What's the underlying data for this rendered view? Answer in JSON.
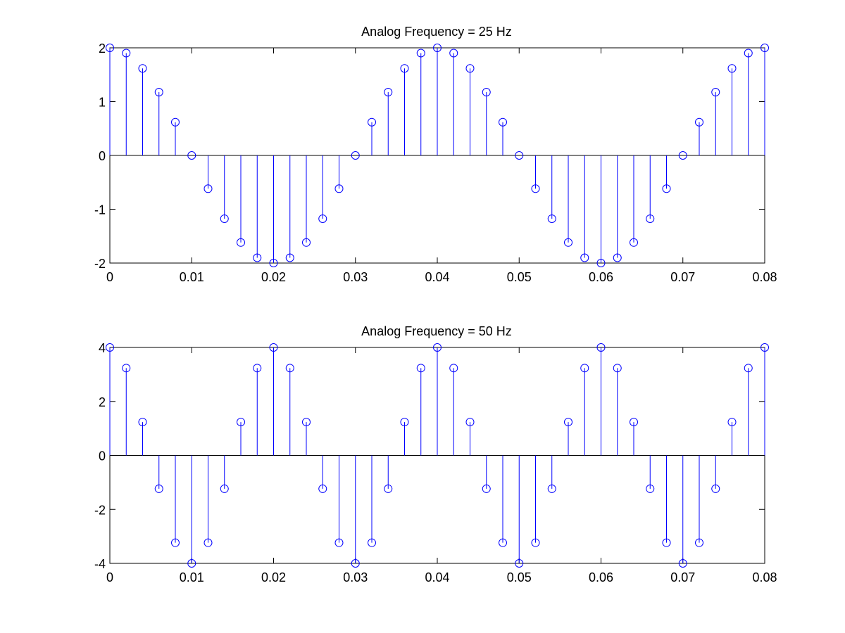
{
  "chart_data": [
    {
      "type": "stem",
      "title": "Analog Frequency = 25 Hz",
      "xlabel": "",
      "ylabel": "",
      "xlim": [
        0,
        0.08
      ],
      "ylim": [
        -2,
        2
      ],
      "xticks": [
        0,
        0.01,
        0.02,
        0.03,
        0.04,
        0.05,
        0.06,
        0.07,
        0.08
      ],
      "xtick_labels": [
        "0",
        "0.01",
        "0.02",
        "0.03",
        "0.04",
        "0.05",
        "0.06",
        "0.07",
        "0.08"
      ],
      "yticks": [
        -2,
        -1,
        0,
        1,
        2
      ],
      "ytick_labels": [
        "-2",
        "-1",
        "0",
        "1",
        "2"
      ],
      "grid": false,
      "series": [
        {
          "color": "#0000ff",
          "marker": "circle",
          "x": [
            0,
            0.002,
            0.004,
            0.006,
            0.008,
            0.01,
            0.012,
            0.014,
            0.016,
            0.018,
            0.02,
            0.022,
            0.024,
            0.026,
            0.028,
            0.03,
            0.032,
            0.034,
            0.036,
            0.038,
            0.04,
            0.042,
            0.044,
            0.046,
            0.048,
            0.05,
            0.052,
            0.054,
            0.056,
            0.058,
            0.06,
            0.062,
            0.064,
            0.066,
            0.068,
            0.07,
            0.072,
            0.074,
            0.076,
            0.078,
            0.08
          ],
          "y": [
            2,
            1.902,
            1.618,
            1.176,
            0.618,
            0,
            -0.618,
            -1.176,
            -1.618,
            -1.902,
            -2,
            -1.902,
            -1.618,
            -1.176,
            -0.618,
            0,
            0.618,
            1.176,
            1.618,
            1.902,
            2,
            1.902,
            1.618,
            1.176,
            0.618,
            0,
            -0.618,
            -1.176,
            -1.618,
            -1.902,
            -2,
            -1.902,
            -1.618,
            -1.176,
            -0.618,
            0,
            0.618,
            1.176,
            1.618,
            1.902,
            2
          ]
        }
      ]
    },
    {
      "type": "stem",
      "title": "Analog Frequency = 50 Hz",
      "xlabel": "",
      "ylabel": "",
      "xlim": [
        0,
        0.08
      ],
      "ylim": [
        -4,
        4
      ],
      "xticks": [
        0,
        0.01,
        0.02,
        0.03,
        0.04,
        0.05,
        0.06,
        0.07,
        0.08
      ],
      "xtick_labels": [
        "0",
        "0.01",
        "0.02",
        "0.03",
        "0.04",
        "0.05",
        "0.06",
        "0.07",
        "0.08"
      ],
      "yticks": [
        -4,
        -2,
        0,
        2,
        4
      ],
      "ytick_labels": [
        "-4",
        "-2",
        "0",
        "2",
        "4"
      ],
      "grid": false,
      "series": [
        {
          "color": "#0000ff",
          "marker": "circle",
          "x": [
            0,
            0.002,
            0.004,
            0.006,
            0.008,
            0.01,
            0.012,
            0.014,
            0.016,
            0.018,
            0.02,
            0.022,
            0.024,
            0.026,
            0.028,
            0.03,
            0.032,
            0.034,
            0.036,
            0.038,
            0.04,
            0.042,
            0.044,
            0.046,
            0.048,
            0.05,
            0.052,
            0.054,
            0.056,
            0.058,
            0.06,
            0.062,
            0.064,
            0.066,
            0.068,
            0.07,
            0.072,
            0.074,
            0.076,
            0.078,
            0.08
          ],
          "y": [
            4,
            3.236,
            1.236,
            -1.236,
            -3.236,
            -4,
            -3.236,
            -1.236,
            1.236,
            3.236,
            4,
            3.236,
            1.236,
            -1.236,
            -3.236,
            -4,
            -3.236,
            -1.236,
            1.236,
            3.236,
            4,
            3.236,
            1.236,
            -1.236,
            -3.236,
            -4,
            -3.236,
            -1.236,
            1.236,
            3.236,
            4,
            3.236,
            1.236,
            -1.236,
            -3.236,
            -4,
            -3.236,
            -1.236,
            1.236,
            3.236,
            4
          ]
        }
      ]
    }
  ]
}
